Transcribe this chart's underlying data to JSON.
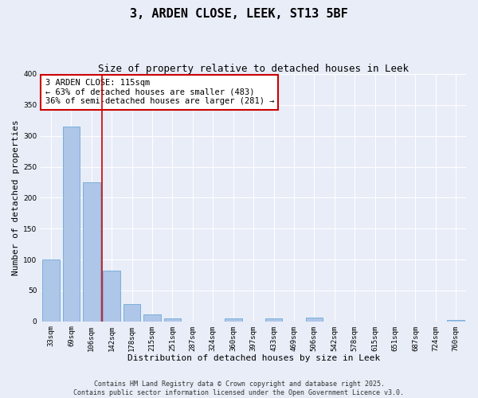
{
  "title_line1": "3, ARDEN CLOSE, LEEK, ST13 5BF",
  "title_line2": "Size of property relative to detached houses in Leek",
  "xlabel": "Distribution of detached houses by size in Leek",
  "ylabel": "Number of detached properties",
  "categories": [
    "33sqm",
    "69sqm",
    "106sqm",
    "142sqm",
    "178sqm",
    "215sqm",
    "251sqm",
    "287sqm",
    "324sqm",
    "360sqm",
    "397sqm",
    "433sqm",
    "469sqm",
    "506sqm",
    "542sqm",
    "578sqm",
    "615sqm",
    "651sqm",
    "687sqm",
    "724sqm",
    "760sqm"
  ],
  "values": [
    100,
    315,
    225,
    82,
    28,
    11,
    5,
    0,
    0,
    5,
    0,
    5,
    0,
    6,
    0,
    0,
    0,
    0,
    0,
    0,
    2
  ],
  "bar_color": "#aec6e8",
  "bar_edgecolor": "#5a9fd4",
  "vline_color": "#cc0000",
  "vline_index": 2.5,
  "annotation_text": "3 ARDEN CLOSE: 115sqm\n← 63% of detached houses are smaller (483)\n36% of semi-detached houses are larger (281) →",
  "annotation_box_edgecolor": "#cc0000",
  "annotation_box_facecolor": "#ffffff",
  "ylim": [
    0,
    400
  ],
  "yticks": [
    0,
    50,
    100,
    150,
    200,
    250,
    300,
    350,
    400
  ],
  "background_color": "#e8edf8",
  "grid_color": "#ffffff",
  "footer_text": "Contains HM Land Registry data © Crown copyright and database right 2025.\nContains public sector information licensed under the Open Government Licence v3.0.",
  "title_fontsize": 11,
  "subtitle_fontsize": 9,
  "axis_label_fontsize": 8,
  "tick_fontsize": 6.5,
  "annotation_fontsize": 7.5,
  "footer_fontsize": 6
}
